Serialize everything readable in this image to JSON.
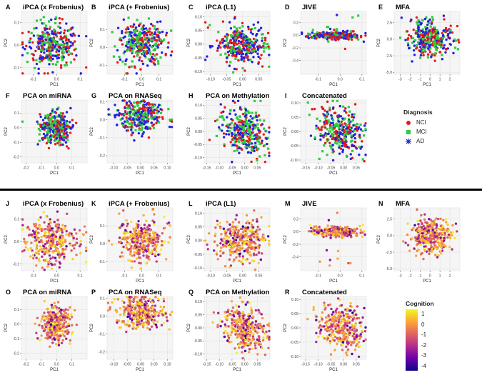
{
  "top_rows_legend": {
    "title": "Diagnosis",
    "items": [
      {
        "label": "NCI",
        "color": "#e41a1c",
        "shape": "circle"
      },
      {
        "label": "MCI",
        "color": "#2ecc40",
        "shape": "square"
      },
      {
        "label": "AD",
        "color": "#2222dd",
        "shape": "asterisk"
      }
    ]
  },
  "bottom_rows_legend": {
    "title": "Cognition",
    "ticks": [
      "1",
      "0",
      "-1",
      "-2",
      "-3",
      "-4"
    ],
    "colormap": [
      "#0d0887",
      "#6a00a8",
      "#b12a90",
      "#e16462",
      "#fca636",
      "#f0f921"
    ],
    "range": [
      -4.4,
      1.4
    ]
  },
  "chart_data": [
    {
      "type": "scatter",
      "letter": "A",
      "title": "iPCA (x Frobenius)",
      "xlabel": "PC1",
      "ylabel": "PC2",
      "xlim": [
        -0.15,
        0.13
      ],
      "ylim": [
        -0.13,
        0.15
      ],
      "xticks": [
        -0.1,
        0.0,
        0.1
      ],
      "yticks": [
        -0.1,
        0.0,
        0.1
      ],
      "xtick_labels": [
        "-0.1",
        "0.0",
        "0.1"
      ],
      "ytick_labels": [
        "-0.1",
        "0.0",
        "0.1"
      ],
      "color_by": "diagnosis",
      "cloud": {
        "cx": -0.02,
        "cy": 0.0,
        "sx": 0.055,
        "sy": 0.05,
        "rho": 0.0,
        "n": 320
      }
    },
    {
      "type": "scatter",
      "letter": "B",
      "title": "iPCA (+ Frobenius)",
      "xlabel": "PC1",
      "ylabel": "PC2",
      "xlim": [
        -0.2,
        0.18
      ],
      "ylim": [
        -0.15,
        0.2
      ],
      "xticks": [
        -0.1,
        0.0,
        0.1
      ],
      "yticks": [
        -0.1,
        0.0,
        0.1
      ],
      "xtick_labels": [
        "-0.1",
        "0.0",
        "0.1"
      ],
      "ytick_labels": [
        "-0.1",
        "0.0",
        "0.1"
      ],
      "color_by": "diagnosis",
      "cloud": {
        "cx": 0.0,
        "cy": 0.02,
        "sx": 0.065,
        "sy": 0.06,
        "rho": 0.0,
        "n": 320
      }
    },
    {
      "type": "scatter",
      "letter": "C",
      "title": "iPCA (L1)",
      "xlabel": "PC1",
      "ylabel": "PC2",
      "xlim": [
        -0.12,
        0.085
      ],
      "ylim": [
        -0.11,
        0.12
      ],
      "xticks": [
        -0.1,
        -0.05,
        0.0,
        0.05
      ],
      "yticks": [
        -0.1,
        -0.05,
        0.0,
        0.05,
        0.1
      ],
      "xtick_labels": [
        "-0.10",
        "-0.05",
        "0.00",
        "0.05"
      ],
      "ytick_labels": [
        "-0.10",
        "-0.05",
        "0.00",
        "0.05",
        "0.10"
      ],
      "color_by": "diagnosis",
      "cloud": {
        "cx": -0.005,
        "cy": 0.0,
        "sx": 0.04,
        "sy": 0.038,
        "rho": 0.0,
        "n": 320
      }
    },
    {
      "type": "scatter",
      "letter": "D",
      "title": "JIVE",
      "xlabel": "PC1",
      "ylabel": "PC2",
      "xlim": [
        -0.18,
        0.12
      ],
      "ylim": [
        -0.62,
        0.38
      ],
      "xticks": [
        -0.1,
        0.0,
        0.1
      ],
      "yticks": [
        -0.4,
        -0.2,
        0.0,
        0.2
      ],
      "xtick_labels": [
        "-0.1",
        "0.0",
        "0.1"
      ],
      "ytick_labels": [
        "-0.4",
        "-0.2",
        "0.0",
        "0.2"
      ],
      "color_by": "diagnosis",
      "cloud": {
        "cx": -0.02,
        "cy": 0.0,
        "sx": 0.055,
        "sy": 0.05,
        "rho": 0.0,
        "n": 300
      }
    },
    {
      "type": "scatter",
      "letter": "E",
      "title": "MFA",
      "xlabel": "PC1",
      "ylabel": "PC2",
      "xlim": [
        -3.6,
        3.0
      ],
      "ylim": [
        -5.3,
        4.2
      ],
      "xticks": [
        -3,
        -2,
        -1,
        0,
        1,
        2
      ],
      "yticks": [
        -5.0,
        -2.5,
        0.0,
        2.5
      ],
      "xtick_labels": [
        "-3",
        "-2",
        "-1",
        "0",
        "1",
        "2"
      ],
      "ytick_labels": [
        "-5.0",
        "-2.5",
        "0.0",
        "2.5"
      ],
      "color_by": "diagnosis",
      "cloud": {
        "cx": 0.0,
        "cy": 0.0,
        "sx": 1.05,
        "sy": 1.3,
        "rho": 0.0,
        "n": 320
      }
    },
    {
      "type": "scatter",
      "letter": "F",
      "title": "PCA on miRNA",
      "xlabel": "PC1",
      "ylabel": "PC2",
      "xlim": [
        -0.23,
        0.2
      ],
      "ylim": [
        -0.24,
        0.19
      ],
      "xticks": [
        -0.2,
        -0.1,
        0.0,
        0.1
      ],
      "yticks": [
        -0.2,
        -0.1,
        0.0,
        0.1
      ],
      "xtick_labels": [
        "-0.2",
        "-0.1",
        "0.0",
        "0.1"
      ],
      "ytick_labels": [
        "-0.2",
        "-0.1",
        "0.0",
        "0.1"
      ],
      "color_by": "diagnosis",
      "cloud": {
        "cx": -0.005,
        "cy": 0.0,
        "sx": 0.05,
        "sy": 0.055,
        "rho": 0.0,
        "n": 320
      }
    },
    {
      "type": "scatter",
      "letter": "G",
      "title": "PCA on RNASeq",
      "xlabel": "PC1",
      "ylabel": "PC2",
      "xlim": [
        -0.125,
        0.12
      ],
      "ylim": [
        -0.24,
        0.11
      ],
      "xticks": [
        -0.1,
        -0.05,
        0.0,
        0.05,
        0.1
      ],
      "yticks": [
        -0.2,
        -0.1,
        0.0,
        0.1
      ],
      "xtick_labels": [
        "-0.10",
        "-0.05",
        "0.00",
        "0.05",
        "0.10"
      ],
      "ytick_labels": [
        "-0.2",
        "-0.1",
        "0.0",
        "0.1"
      ],
      "color_by": "diagnosis",
      "cloud": {
        "cx": 0.0,
        "cy": 0.02,
        "sx": 0.045,
        "sy": 0.045,
        "rho": 0.0,
        "n": 320
      }
    },
    {
      "type": "scatter",
      "letter": "H",
      "title": "PCA on Methylation",
      "xlabel": "PC1",
      "ylabel": "PC2",
      "xlim": [
        -0.16,
        0.1
      ],
      "ylim": [
        -0.12,
        0.12
      ],
      "xticks": [
        -0.15,
        -0.1,
        -0.05,
        0.0,
        0.05
      ],
      "yticks": [
        -0.1,
        -0.05,
        0.0,
        0.05,
        0.1
      ],
      "xtick_labels": [
        "-0.15",
        "-0.10",
        "-0.05",
        "0.00",
        "0.05"
      ],
      "ytick_labels": [
        "-0.10",
        "-0.05",
        "0.00",
        "0.05",
        "0.10"
      ],
      "color_by": "diagnosis",
      "cloud": {
        "cx": 0.0,
        "cy": 0.0,
        "sx": 0.045,
        "sy": 0.045,
        "rho": -0.3,
        "n": 320
      }
    },
    {
      "type": "scatter",
      "letter": "I",
      "title": "Concatenated",
      "xlabel": "PC1",
      "ylabel": "PC2",
      "xlim": [
        -0.17,
        0.09
      ],
      "ylim": [
        -0.11,
        0.11
      ],
      "xticks": [
        -0.15,
        -0.1,
        -0.05,
        0.0,
        0.05
      ],
      "yticks": [
        -0.1,
        -0.05,
        0.0,
        0.05,
        0.1
      ],
      "xtick_labels": [
        "-0.15",
        "-0.10",
        "-0.05",
        "0.00",
        "0.05"
      ],
      "ytick_labels": [
        "-0.10",
        "-0.05",
        "0.00",
        "0.05",
        "0.10"
      ],
      "color_by": "diagnosis",
      "cloud": {
        "cx": -0.01,
        "cy": 0.0,
        "sx": 0.045,
        "sy": 0.04,
        "rho": -0.2,
        "n": 320
      }
    },
    {
      "type": "scatter",
      "letter": "J",
      "title": "iPCA (x Frobenius)",
      "xlabel": "PC1",
      "ylabel": "PC2",
      "xlim": [
        -0.15,
        0.13
      ],
      "ylim": [
        -0.13,
        0.15
      ],
      "xticks": [
        -0.1,
        0.0,
        0.1
      ],
      "yticks": [
        -0.1,
        0.0,
        0.1
      ],
      "xtick_labels": [
        "-0.1",
        "0.0",
        "0.1"
      ],
      "ytick_labels": [
        "-0.1",
        "0.0",
        "0.1"
      ],
      "color_by": "cognition",
      "cloud": {
        "cx": -0.02,
        "cy": 0.0,
        "sx": 0.055,
        "sy": 0.05,
        "rho": 0.0,
        "n": 320
      }
    },
    {
      "type": "scatter",
      "letter": "K",
      "title": "iPCA (+ Frobenius)",
      "xlabel": "PC1",
      "ylabel": "PC2",
      "xlim": [
        -0.2,
        0.18
      ],
      "ylim": [
        -0.15,
        0.2
      ],
      "xticks": [
        -0.1,
        0.0,
        0.1
      ],
      "yticks": [
        -0.1,
        0.0,
        0.1
      ],
      "xtick_labels": [
        "-0.1",
        "0.0",
        "0.1"
      ],
      "ytick_labels": [
        "-0.1",
        "0.0",
        "0.1"
      ],
      "color_by": "cognition",
      "cloud": {
        "cx": 0.0,
        "cy": 0.02,
        "sx": 0.065,
        "sy": 0.06,
        "rho": 0.0,
        "n": 320
      }
    },
    {
      "type": "scatter",
      "letter": "L",
      "title": "iPCA (L1)",
      "xlabel": "PC1",
      "ylabel": "PC2",
      "xlim": [
        -0.12,
        0.085
      ],
      "ylim": [
        -0.11,
        0.12
      ],
      "xticks": [
        -0.1,
        -0.05,
        0.0,
        0.05
      ],
      "yticks": [
        -0.1,
        -0.05,
        0.0,
        0.05,
        0.1
      ],
      "xtick_labels": [
        "-0.10",
        "-0.05",
        "0.00",
        "0.05"
      ],
      "ytick_labels": [
        "-0.10",
        "-0.05",
        "0.00",
        "0.05",
        "0.10"
      ],
      "color_by": "cognition",
      "cloud": {
        "cx": -0.005,
        "cy": 0.0,
        "sx": 0.04,
        "sy": 0.038,
        "rho": 0.0,
        "n": 320
      }
    },
    {
      "type": "scatter",
      "letter": "M",
      "title": "JIVE",
      "xlabel": "PC1",
      "ylabel": "PC2",
      "xlim": [
        -0.18,
        0.12
      ],
      "ylim": [
        -0.62,
        0.38
      ],
      "xticks": [
        -0.1,
        0.0,
        0.1
      ],
      "yticks": [
        -0.4,
        -0.2,
        0.0,
        0.2
      ],
      "xtick_labels": [
        "-0.1",
        "0.0",
        "0.1"
      ],
      "ytick_labels": [
        "-0.4",
        "-0.2",
        "0.0",
        "0.2"
      ],
      "color_by": "cognition",
      "cloud": {
        "cx": -0.02,
        "cy": 0.0,
        "sx": 0.055,
        "sy": 0.05,
        "rho": 0.0,
        "n": 300
      }
    },
    {
      "type": "scatter",
      "letter": "N",
      "title": "MFA",
      "xlabel": "PC1",
      "ylabel": "PC2",
      "xlim": [
        -3.6,
        3.0
      ],
      "ylim": [
        -5.3,
        4.2
      ],
      "xticks": [
        -3,
        -2,
        -1,
        0,
        1,
        2
      ],
      "yticks": [
        -5.0,
        -2.5,
        0.0,
        2.5
      ],
      "xtick_labels": [
        "-3",
        "-2",
        "-1",
        "0",
        "1",
        "2"
      ],
      "ytick_labels": [
        "-5.0",
        "-2.5",
        "0.0",
        "2.5"
      ],
      "color_by": "cognition",
      "cloud": {
        "cx": 0.0,
        "cy": 0.0,
        "sx": 1.05,
        "sy": 1.3,
        "rho": 0.0,
        "n": 320
      }
    },
    {
      "type": "scatter",
      "letter": "O",
      "title": "PCA on miRNA",
      "xlabel": "PC1",
      "ylabel": "PC2",
      "xlim": [
        -0.23,
        0.2
      ],
      "ylim": [
        -0.24,
        0.19
      ],
      "xticks": [
        -0.2,
        -0.1,
        0.0,
        0.1
      ],
      "yticks": [
        -0.2,
        -0.1,
        0.0,
        0.1
      ],
      "xtick_labels": [
        "-0.2",
        "-0.1",
        "0.0",
        "0.1"
      ],
      "ytick_labels": [
        "-0.2",
        "-0.1",
        "0.0",
        "0.1"
      ],
      "color_by": "cognition",
      "cloud": {
        "cx": -0.005,
        "cy": 0.0,
        "sx": 0.05,
        "sy": 0.055,
        "rho": 0.0,
        "n": 320
      }
    },
    {
      "type": "scatter",
      "letter": "P",
      "title": "PCA on RNASeq",
      "xlabel": "PC1",
      "ylabel": "PC2",
      "xlim": [
        -0.125,
        0.12
      ],
      "ylim": [
        -0.24,
        0.11
      ],
      "xticks": [
        -0.1,
        -0.05,
        0.0,
        0.05,
        0.1
      ],
      "yticks": [
        -0.2,
        -0.1,
        0.0,
        0.1
      ],
      "xtick_labels": [
        "-0.10",
        "-0.05",
        "0.00",
        "0.05",
        "0.10"
      ],
      "ytick_labels": [
        "-0.2",
        "-0.1",
        "0.0",
        "0.1"
      ],
      "color_by": "cognition",
      "cloud": {
        "cx": 0.0,
        "cy": 0.02,
        "sx": 0.045,
        "sy": 0.045,
        "rho": 0.0,
        "n": 320
      }
    },
    {
      "type": "scatter",
      "letter": "Q",
      "title": "PCA on Methylation",
      "xlabel": "PC1",
      "ylabel": "PC2",
      "xlim": [
        -0.16,
        0.1
      ],
      "ylim": [
        -0.12,
        0.12
      ],
      "xticks": [
        -0.15,
        -0.1,
        -0.05,
        0.0,
        0.05
      ],
      "yticks": [
        -0.1,
        -0.05,
        0.0,
        0.05,
        0.1
      ],
      "xtick_labels": [
        "-0.15",
        "-0.10",
        "-0.05",
        "0.00",
        "0.05"
      ],
      "ytick_labels": [
        "-0.10",
        "-0.05",
        "0.00",
        "0.05",
        "0.10"
      ],
      "color_by": "cognition",
      "cloud": {
        "cx": 0.0,
        "cy": 0.0,
        "sx": 0.045,
        "sy": 0.045,
        "rho": -0.3,
        "n": 320
      }
    },
    {
      "type": "scatter",
      "letter": "R",
      "title": "Concatenated",
      "xlabel": "PC1",
      "ylabel": "PC2",
      "xlim": [
        -0.17,
        0.09
      ],
      "ylim": [
        -0.11,
        0.11
      ],
      "xticks": [
        -0.15,
        -0.1,
        -0.05,
        0.0,
        0.05
      ],
      "yticks": [
        -0.1,
        -0.05,
        0.0,
        0.05,
        0.1
      ],
      "xtick_labels": [
        "-0.15",
        "-0.10",
        "-0.05",
        "0.00",
        "0.05"
      ],
      "ytick_labels": [
        "-0.10",
        "-0.05",
        "0.00",
        "0.05",
        "0.10"
      ],
      "color_by": "cognition",
      "cloud": {
        "cx": -0.01,
        "cy": 0.0,
        "sx": 0.045,
        "sy": 0.04,
        "rho": -0.2,
        "n": 320
      }
    }
  ]
}
